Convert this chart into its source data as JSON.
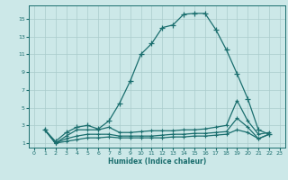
{
  "title": "",
  "xlabel": "Humidex (Indice chaleur)",
  "bg_color": "#cce8e8",
  "grid_color": "#aacccc",
  "line_color": "#1a6e6e",
  "xlim": [
    -0.5,
    23.5
  ],
  "ylim": [
    0.5,
    16.5
  ],
  "xticks": [
    0,
    1,
    2,
    3,
    4,
    5,
    6,
    7,
    8,
    9,
    10,
    11,
    12,
    13,
    14,
    15,
    16,
    17,
    18,
    19,
    20,
    21,
    22,
    23
  ],
  "yticks": [
    1,
    3,
    5,
    7,
    9,
    11,
    13,
    15
  ],
  "curve1_x": [
    1,
    2,
    3,
    4,
    5,
    6,
    7,
    8,
    9,
    10,
    11,
    12,
    13,
    14,
    15,
    16,
    17,
    18,
    19,
    20,
    21,
    22
  ],
  "curve1_y": [
    2.5,
    1.2,
    2.2,
    2.8,
    3.0,
    2.6,
    3.5,
    5.5,
    8.0,
    11.0,
    12.2,
    14.0,
    14.3,
    15.5,
    15.6,
    15.6,
    13.8,
    11.5,
    8.8,
    6.0,
    2.5,
    2.0
  ],
  "curve2_x": [
    1,
    2,
    3,
    4,
    5,
    6,
    7,
    8,
    9,
    10,
    11,
    12,
    13,
    14,
    15,
    16,
    17,
    18,
    19,
    20,
    21,
    22
  ],
  "curve2_y": [
    2.5,
    1.0,
    1.8,
    2.5,
    2.5,
    2.5,
    2.8,
    2.2,
    2.2,
    2.3,
    2.4,
    2.4,
    2.4,
    2.5,
    2.5,
    2.6,
    2.8,
    3.0,
    5.8,
    3.5,
    2.0,
    2.2
  ],
  "curve3_x": [
    1,
    2,
    3,
    4,
    5,
    6,
    7,
    8,
    9,
    10,
    11,
    12,
    13,
    14,
    15,
    16,
    17,
    18,
    19,
    20,
    21,
    22
  ],
  "curve3_y": [
    2.5,
    1.0,
    1.5,
    1.8,
    2.0,
    2.0,
    2.0,
    1.8,
    1.8,
    1.8,
    1.8,
    1.9,
    2.0,
    2.0,
    2.1,
    2.1,
    2.2,
    2.3,
    3.8,
    2.8,
    1.5,
    2.0
  ],
  "curve4_x": [
    1,
    2,
    3,
    4,
    5,
    6,
    7,
    8,
    9,
    10,
    11,
    12,
    13,
    14,
    15,
    16,
    17,
    18,
    19,
    20,
    21,
    22
  ],
  "curve4_y": [
    2.5,
    1.0,
    1.2,
    1.4,
    1.6,
    1.6,
    1.7,
    1.6,
    1.6,
    1.6,
    1.6,
    1.6,
    1.7,
    1.7,
    1.8,
    1.8,
    1.9,
    2.0,
    2.5,
    2.2,
    1.5,
    2.0
  ]
}
